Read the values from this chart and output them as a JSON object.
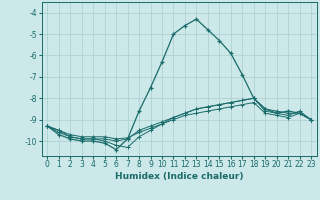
{
  "xlabel": "Humidex (Indice chaleur)",
  "background_color": "#cce8e8",
  "grid_color": "#aacece",
  "line_color": "#1a6b6b",
  "xlim": [
    -0.5,
    23.5
  ],
  "ylim": [
    -10.7,
    -3.5
  ],
  "yticks": [
    -10,
    -9,
    -8,
    -7,
    -6,
    -5,
    -4
  ],
  "xticks": [
    0,
    1,
    2,
    3,
    4,
    5,
    6,
    7,
    8,
    9,
    10,
    11,
    12,
    13,
    14,
    15,
    16,
    17,
    18,
    19,
    20,
    21,
    22,
    23
  ],
  "series": [
    {
      "x": [
        0,
        1,
        2,
        3,
        4,
        5,
        6,
        7,
        8,
        9,
        10,
        11,
        12,
        13,
        14,
        15,
        16,
        17,
        18,
        19,
        20,
        21,
        22,
        23
      ],
      "y": [
        -9.3,
        -9.7,
        -9.9,
        -10.0,
        -10.0,
        -10.1,
        -10.4,
        -9.9,
        -8.6,
        -7.5,
        -6.3,
        -5.0,
        -4.6,
        -4.3,
        -4.8,
        -5.3,
        -5.9,
        -6.9,
        -8.0,
        -8.5,
        -8.7,
        -8.6,
        -8.7,
        -9.0
      ]
    },
    {
      "x": [
        0,
        1,
        2,
        3,
        4,
        5,
        6,
        7,
        8,
        9,
        10,
        11,
        12,
        13,
        14,
        15,
        16,
        17,
        18,
        19,
        20,
        21,
        22,
        23
      ],
      "y": [
        -9.3,
        -9.6,
        -9.8,
        -9.9,
        -9.9,
        -9.9,
        -10.0,
        -9.9,
        -9.5,
        -9.3,
        -9.1,
        -8.9,
        -8.7,
        -8.5,
        -8.4,
        -8.3,
        -8.2,
        -8.1,
        -8.0,
        -8.6,
        -8.7,
        -8.8,
        -8.6,
        -9.0
      ]
    },
    {
      "x": [
        0,
        1,
        2,
        3,
        4,
        5,
        6,
        7,
        8,
        9,
        10,
        11,
        12,
        13,
        14,
        15,
        16,
        17,
        18,
        19,
        20,
        21,
        22,
        23
      ],
      "y": [
        -9.3,
        -9.5,
        -9.7,
        -9.8,
        -9.8,
        -9.8,
        -9.9,
        -9.85,
        -9.6,
        -9.4,
        -9.2,
        -9.0,
        -8.8,
        -8.7,
        -8.6,
        -8.5,
        -8.4,
        -8.3,
        -8.2,
        -8.7,
        -8.8,
        -8.9,
        -8.7,
        -9.0
      ]
    },
    {
      "x": [
        0,
        1,
        2,
        3,
        4,
        5,
        6,
        7,
        8,
        9,
        10,
        11,
        12,
        13,
        14,
        15,
        16,
        17,
        18,
        19,
        20,
        21,
        22,
        23
      ],
      "y": [
        -9.3,
        -9.5,
        -9.8,
        -9.9,
        -9.9,
        -10.0,
        -10.2,
        -10.3,
        -9.8,
        -9.5,
        -9.2,
        -8.9,
        -8.7,
        -8.5,
        -8.4,
        -8.3,
        -8.2,
        -8.1,
        -8.0,
        -8.5,
        -8.6,
        -8.7,
        -8.7,
        -9.0
      ]
    }
  ]
}
